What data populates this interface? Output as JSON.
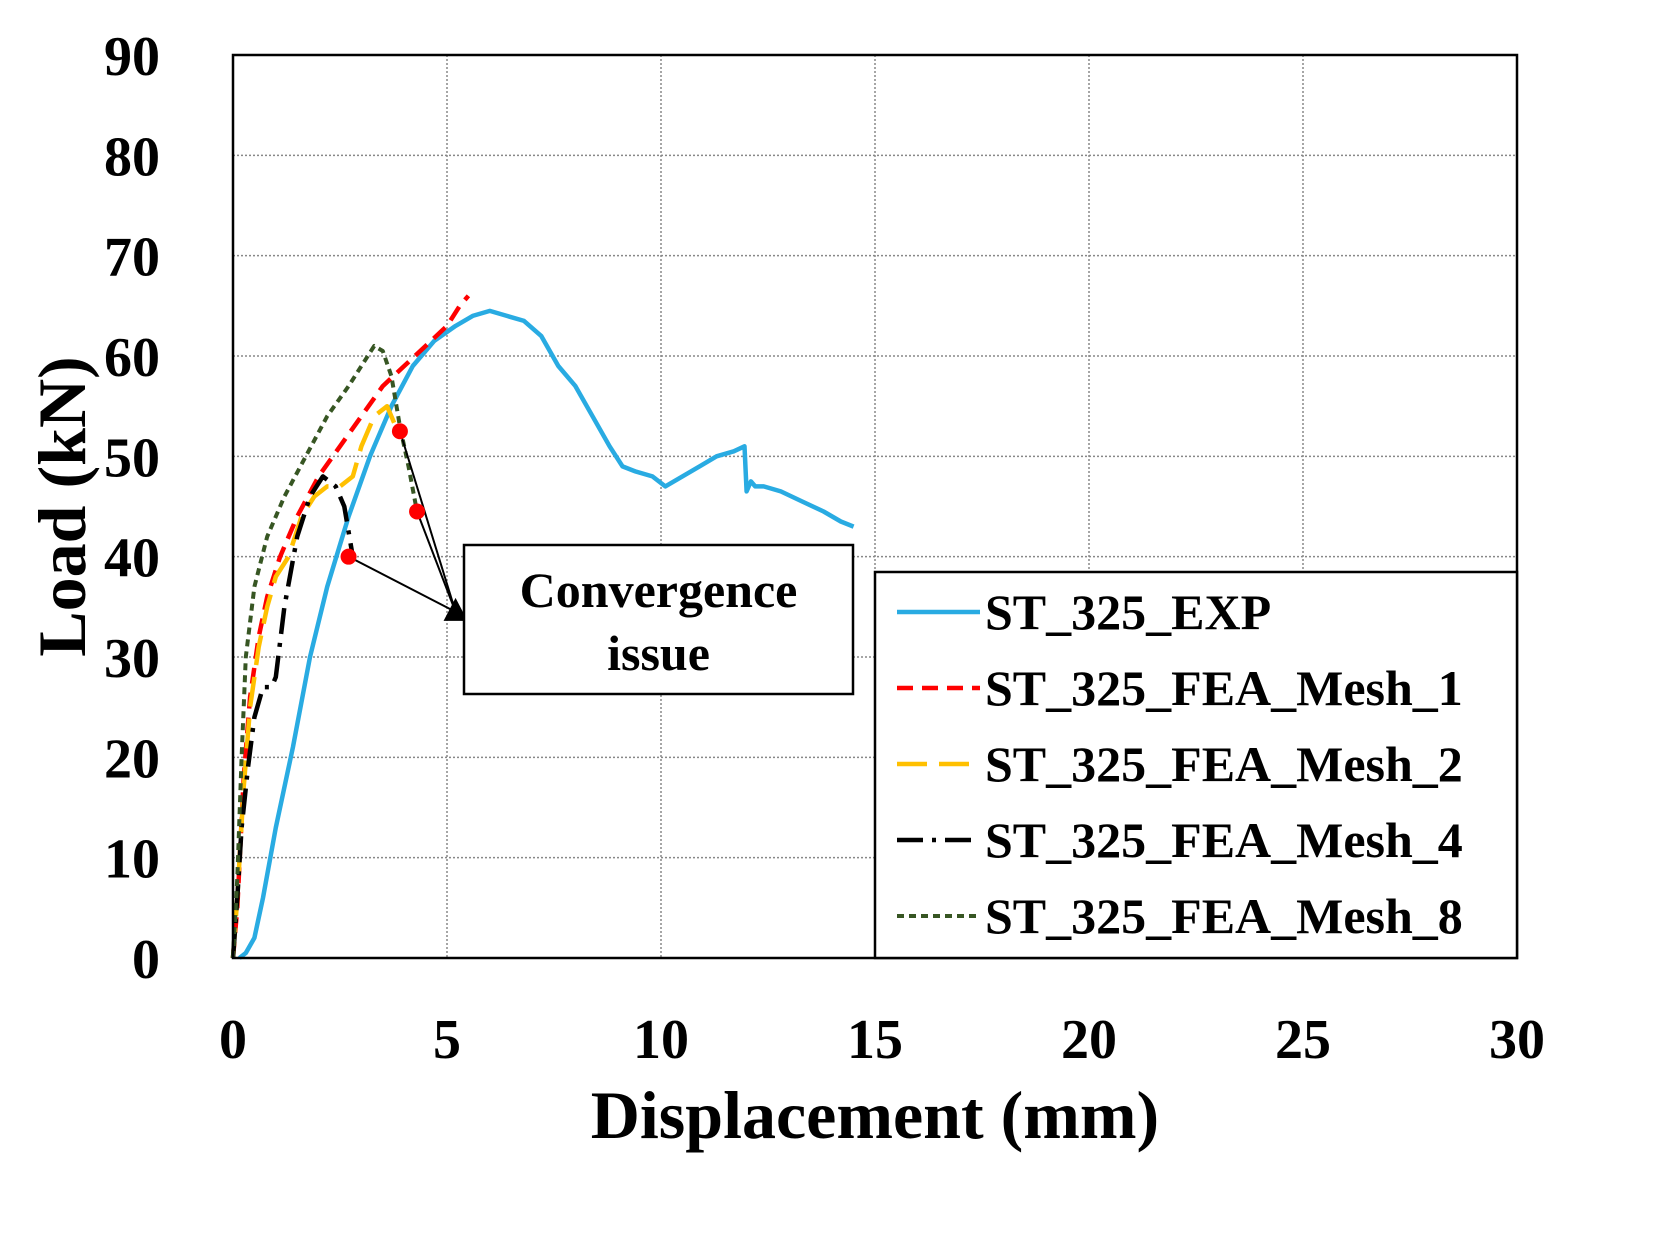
{
  "chart_data": {
    "type": "line",
    "xlabel": "Displacement (mm)",
    "ylabel": "Load (kN)",
    "xlim": [
      0,
      30
    ],
    "ylim": [
      0,
      90
    ],
    "xticks": [
      0,
      5,
      10,
      15,
      20,
      25,
      30
    ],
    "yticks": [
      0,
      10,
      20,
      30,
      40,
      50,
      60,
      70,
      80,
      90
    ],
    "grid": true,
    "legend_position": "bottom-right",
    "series": [
      {
        "name": "ST_325_EXP",
        "color": "#29ABE2",
        "style": "solid",
        "x": [
          0.15,
          0.3,
          0.5,
          0.7,
          1.0,
          1.4,
          1.8,
          2.2,
          2.7,
          3.2,
          3.7,
          4.2,
          4.7,
          5.2,
          5.6,
          6.0,
          6.4,
          6.8,
          7.2,
          7.6,
          8.0,
          8.4,
          8.8,
          9.1,
          9.4,
          9.8,
          10.1,
          10.5,
          10.9,
          11.3,
          11.7,
          11.95,
          12.0,
          12.1,
          12.2,
          12.4,
          12.8,
          13.3,
          13.8,
          14.2,
          14.5
        ],
        "y": [
          0,
          0.5,
          2,
          6,
          13,
          21,
          30,
          37,
          44,
          50,
          55,
          59,
          61.5,
          63,
          64,
          64.5,
          64,
          63.5,
          62,
          59,
          57,
          54,
          51,
          49,
          48.5,
          48,
          47,
          48,
          49,
          50,
          50.5,
          51,
          46.5,
          47.5,
          47,
          47,
          46.5,
          45.5,
          44.5,
          43.5,
          43
        ]
      },
      {
        "name": "ST_325_FEA_Mesh_1",
        "color": "#FF0000",
        "style": "dashed",
        "x": [
          0,
          0.1,
          0.25,
          0.4,
          0.6,
          0.8,
          1.1,
          1.5,
          2.0,
          2.5,
          3.0,
          3.5,
          4.0,
          4.5,
          5.0,
          5.3,
          5.5
        ],
        "y": [
          0,
          5,
          18,
          26,
          32,
          36,
          40,
          44,
          48,
          51,
          54,
          57,
          59,
          61,
          63,
          65,
          66
        ]
      },
      {
        "name": "ST_325_FEA_Mesh_2",
        "color": "#FFC000",
        "style": "long-dash",
        "x": [
          0,
          0.1,
          0.25,
          0.4,
          0.6,
          0.8,
          1.0,
          1.3,
          1.6,
          1.9,
          2.2,
          2.5,
          2.8,
          3.0,
          3.3,
          3.6,
          3.9
        ],
        "y": [
          0,
          6,
          17,
          25,
          31,
          35,
          38,
          40,
          44,
          46,
          47,
          47,
          48,
          51,
          54,
          55,
          52
        ]
      },
      {
        "name": "ST_325_FEA_Mesh_4",
        "color": "#000000",
        "style": "dash-dot",
        "x": [
          0,
          0.1,
          0.2,
          0.35,
          0.5,
          0.7,
          0.9,
          1.0,
          1.2,
          1.5,
          1.8,
          2.1,
          2.4,
          2.6,
          2.8
        ],
        "y": [
          0,
          6,
          13,
          19,
          24,
          27,
          27,
          28,
          35,
          42,
          46,
          48,
          47,
          45,
          40
        ]
      },
      {
        "name": "ST_325_FEA_Mesh_8",
        "color": "#375623",
        "style": "dotted",
        "x": [
          0,
          0.1,
          0.2,
          0.3,
          0.5,
          0.8,
          1.2,
          1.7,
          2.2,
          2.7,
          3.0,
          3.3,
          3.5,
          3.7,
          3.9,
          4.1,
          4.3
        ],
        "y": [
          0,
          8,
          20,
          30,
          37,
          42,
          46,
          50,
          54,
          57,
          59,
          61,
          60.5,
          58,
          53,
          49,
          44.5
        ]
      }
    ],
    "failure_markers": [
      {
        "x": 2.7,
        "y": 40
      },
      {
        "x": 3.9,
        "y": 52.5
      },
      {
        "x": 4.3,
        "y": 44.5
      }
    ],
    "annotation": {
      "lines": [
        "Convergence",
        "issue"
      ],
      "target": {
        "x": 5.2,
        "y": 34.5
      }
    }
  }
}
